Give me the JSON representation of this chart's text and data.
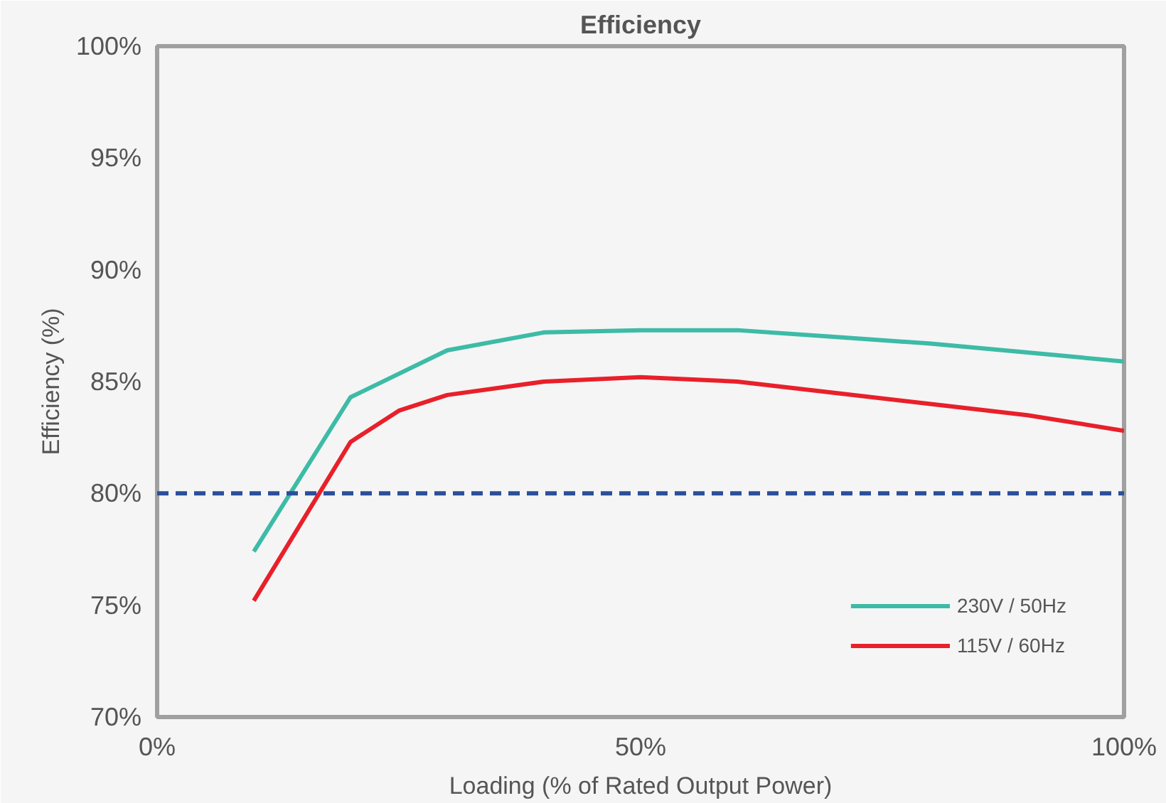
{
  "chart_data": {
    "type": "line",
    "title": "Efficiency",
    "xlabel": "Loading (% of Rated Output Power)",
    "ylabel": "Efficiency (%)",
    "xlim": [
      0,
      100
    ],
    "ylim": [
      70,
      100
    ],
    "xticks": [
      {
        "value": 0,
        "label": "0%"
      },
      {
        "value": 50,
        "label": "50%"
      },
      {
        "value": 100,
        "label": "100%"
      }
    ],
    "yticks": [
      {
        "value": 70,
        "label": "70%"
      },
      {
        "value": 75,
        "label": "75%"
      },
      {
        "value": 80,
        "label": "80%"
      },
      {
        "value": 85,
        "label": "85%"
      },
      {
        "value": 90,
        "label": "90%"
      },
      {
        "value": 95,
        "label": "95%"
      },
      {
        "value": 100,
        "label": "100%"
      }
    ],
    "series": [
      {
        "name": "230V / 50Hz",
        "color": "#3dbba6",
        "x": [
          10,
          20,
          30,
          40,
          50,
          60,
          70,
          80,
          90,
          100
        ],
        "values": [
          77.4,
          84.3,
          86.4,
          87.2,
          87.3,
          87.3,
          87.0,
          86.7,
          86.3,
          85.9
        ]
      },
      {
        "name": "115V / 60Hz",
        "color": "#e8202a",
        "x": [
          10,
          20,
          25,
          30,
          40,
          50,
          60,
          70,
          80,
          90,
          100
        ],
        "values": [
          75.2,
          82.3,
          83.7,
          84.4,
          85.0,
          85.2,
          85.0,
          84.5,
          84.0,
          83.5,
          82.8
        ]
      }
    ],
    "ref_lines": [
      {
        "axis": "y",
        "value": 80,
        "color": "#2a4f9a",
        "line_style": "dashed"
      }
    ],
    "legend": "bottom right",
    "grid": false,
    "marker": "none",
    "line_style": "solid"
  }
}
